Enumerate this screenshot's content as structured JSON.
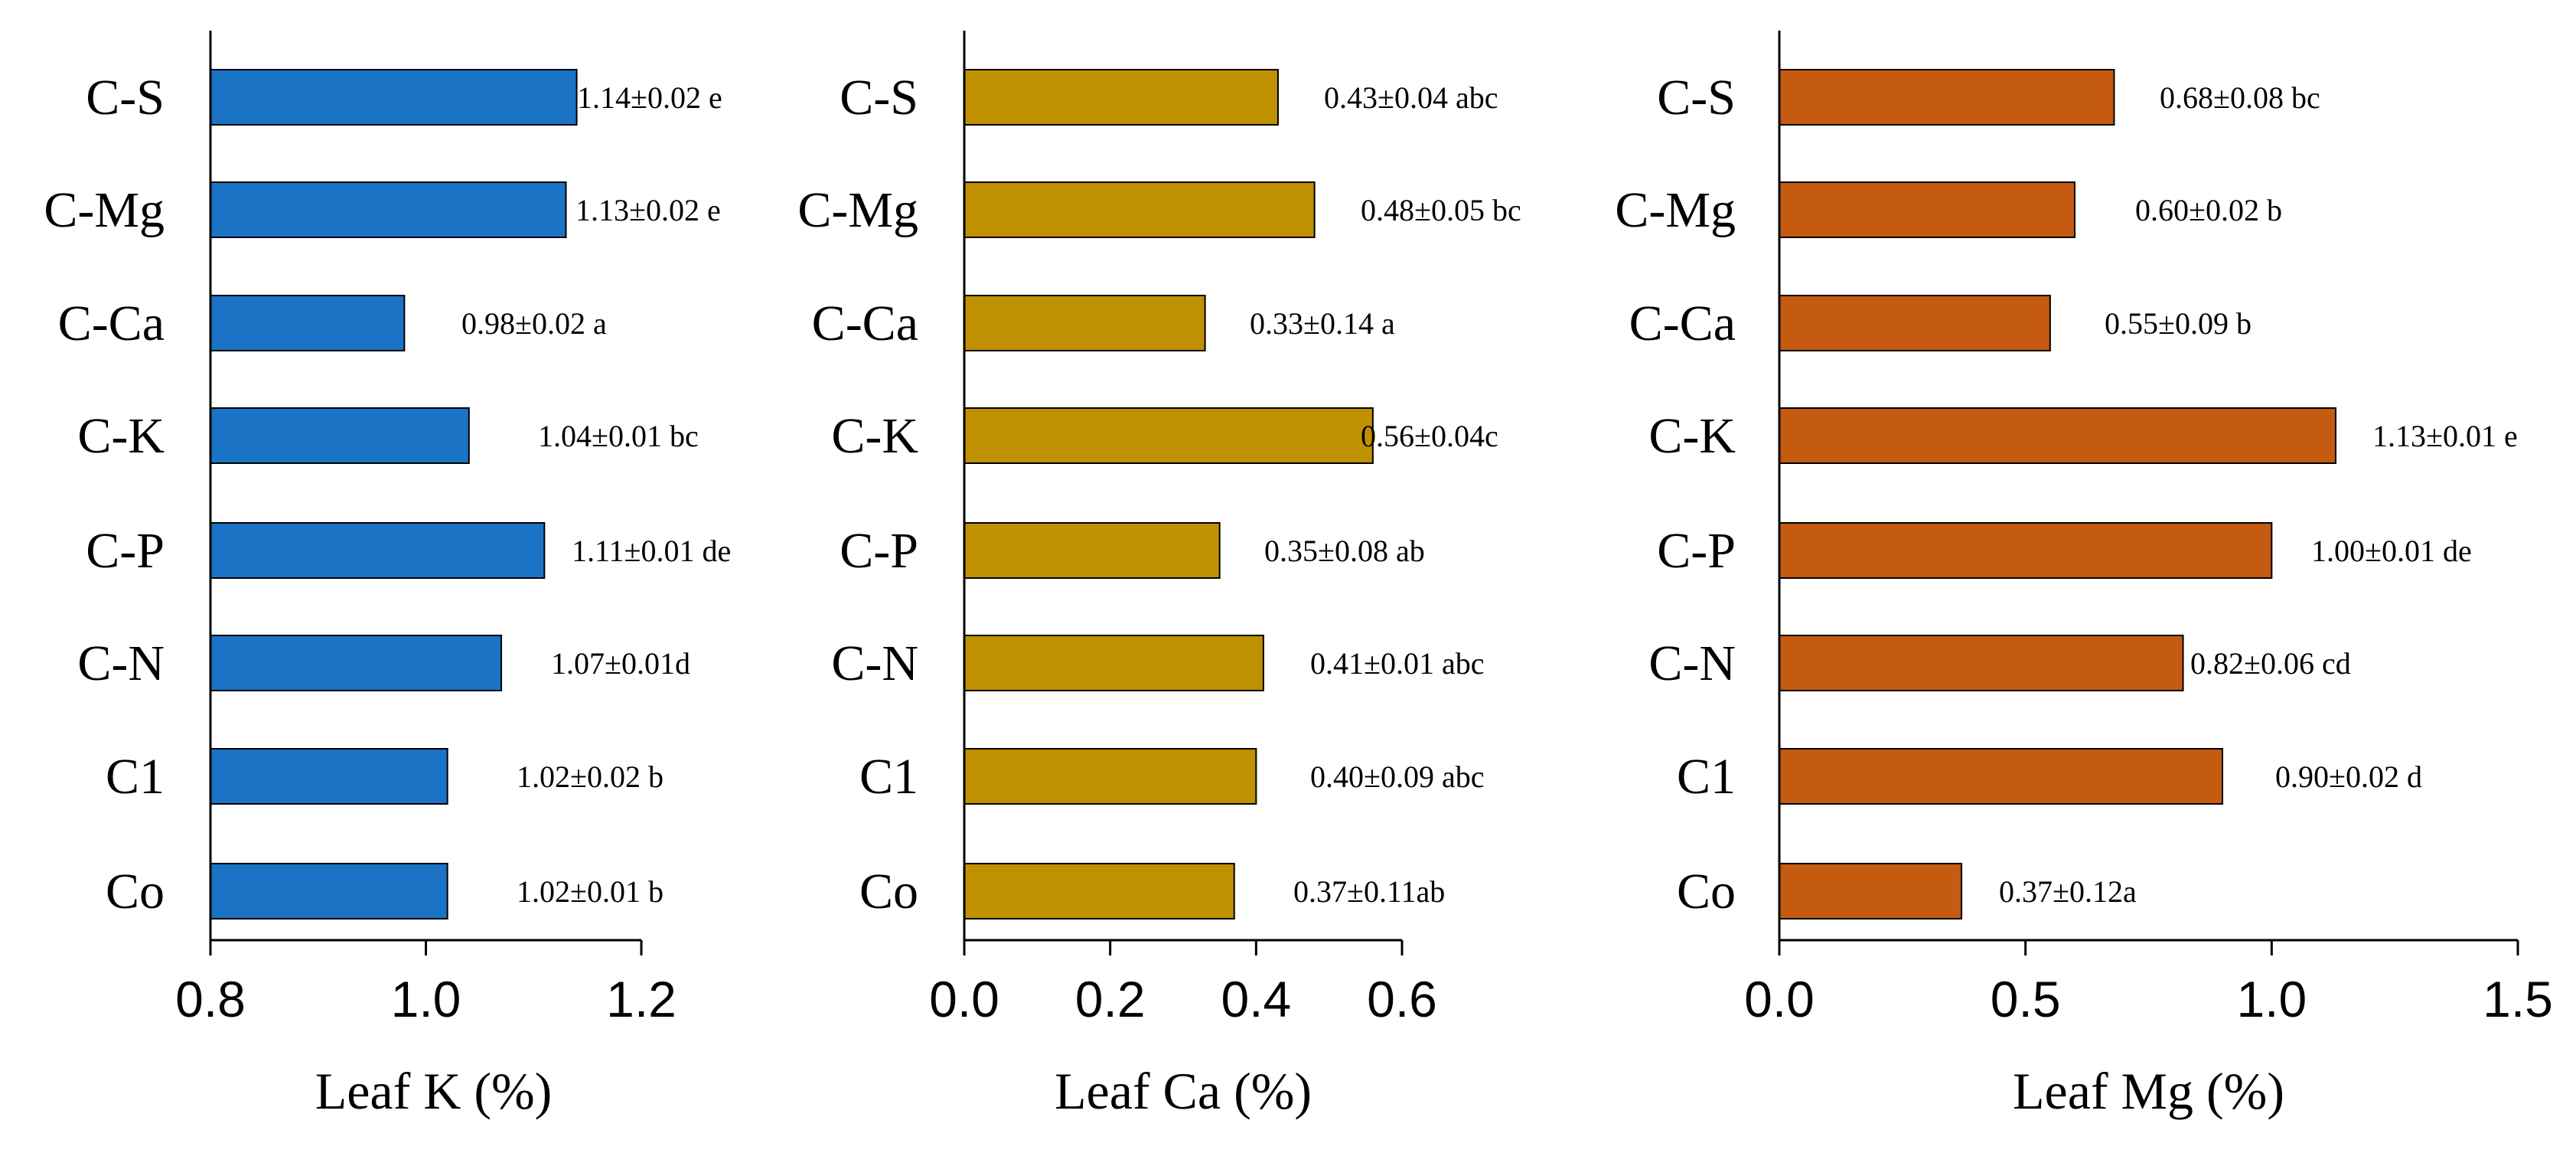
{
  "chart_data": [
    {
      "type": "bar",
      "orientation": "horizontal",
      "title": "",
      "xlabel": "Leaf K (%)",
      "ylabel": "",
      "xlim": [
        0.8,
        1.2
      ],
      "xticks": [
        "0.8",
        "1.0",
        "1.2"
      ],
      "color": "#1b73c6",
      "categories": [
        "C-S",
        "C-Mg",
        "C-Ca",
        "C-K",
        "C-P",
        "C-N",
        "C1",
        "Co"
      ],
      "values": [
        1.14,
        1.13,
        0.98,
        1.04,
        1.11,
        1.07,
        1.02,
        1.02
      ],
      "labels": [
        "1.14±0.02 e",
        "1.13±0.02 e",
        "0.98±0.02 a",
        "1.04±0.01 bc",
        "1.11±0.01 de",
        "1.07±0.01d",
        "1.02±0.02 b",
        "1.02±0.01 b"
      ]
    },
    {
      "type": "bar",
      "orientation": "horizontal",
      "title": "",
      "xlabel": "Leaf Ca (%)",
      "ylabel": "",
      "xlim": [
        0.0,
        0.6
      ],
      "xticks": [
        "0.0",
        "0.2",
        "0.4",
        "0.6"
      ],
      "color": "#bf9000",
      "categories": [
        "C-S",
        "C-Mg",
        "C-Ca",
        "C-K",
        "C-P",
        "C-N",
        "C1",
        "Co"
      ],
      "values": [
        0.43,
        0.48,
        0.33,
        0.56,
        0.35,
        0.41,
        0.4,
        0.37
      ],
      "labels": [
        "0.43±0.04 abc",
        "0.48±0.05 bc",
        "0.33±0.14 a",
        "0.56±0.04c",
        "0.35±0.08 ab",
        "0.41±0.01 abc",
        "0.40±0.09 abc",
        "0.37±0.11ab"
      ]
    },
    {
      "type": "bar",
      "orientation": "horizontal",
      "title": "",
      "xlabel": "Leaf Mg (%)",
      "ylabel": "",
      "xlim": [
        0.0,
        1.5
      ],
      "xticks": [
        "0.0",
        "0.5",
        "1.0",
        "1.5"
      ],
      "color": "#c55a11",
      "categories": [
        "C-S",
        "C-Mg",
        "C-Ca",
        "C-K",
        "C-P",
        "C-N",
        "C1",
        "Co"
      ],
      "values": [
        0.68,
        0.6,
        0.55,
        1.13,
        1.0,
        0.82,
        0.9,
        0.37
      ],
      "labels": [
        "0.68±0.08 bc",
        "0.60±0.02 b",
        "0.55±0.09 b",
        "1.13±0.01 e",
        "1.00±0.01 de",
        "0.82±0.06 cd",
        "0.90±0.02 d",
        "0.37±0.12a"
      ]
    }
  ]
}
